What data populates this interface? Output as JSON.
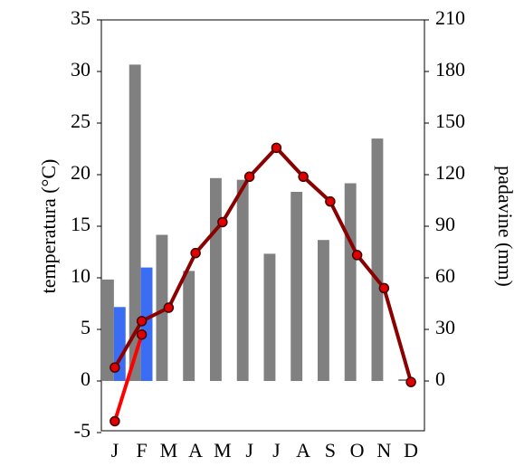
{
  "chart_data": {
    "type": "bar-line",
    "y_label": "temperatura (°C)",
    "y2_label": "padavine (mm)",
    "categories": [
      "J",
      "F",
      "M",
      "A",
      "M",
      "J",
      "J",
      "A",
      "S",
      "O",
      "N",
      "D"
    ],
    "ylim": [
      -5,
      35
    ],
    "yticks": [
      -5,
      0,
      5,
      10,
      15,
      20,
      25,
      30,
      35
    ],
    "y2lim": [
      -30,
      210
    ],
    "y2ticks": [
      0,
      30,
      60,
      90,
      120,
      150,
      180,
      210
    ],
    "series": [
      {
        "type": "bar",
        "axis": "y2",
        "color": "#808080",
        "values": [
          59,
          184,
          85,
          64,
          118,
          117,
          74,
          110,
          82,
          115,
          141,
          1
        ]
      },
      {
        "type": "bar",
        "axis": "y2",
        "color": "#3a6cf4",
        "values": [
          43,
          66,
          null,
          null,
          null,
          null,
          null,
          null,
          null,
          null,
          null,
          null
        ]
      },
      {
        "type": "line",
        "axis": "y",
        "color": "#8b0000",
        "values": [
          1.3,
          5.8,
          7.1,
          12.4,
          15.4,
          19.8,
          22.6,
          19.8,
          17.4,
          12.2,
          9.0,
          -0.1
        ]
      },
      {
        "type": "line",
        "axis": "y",
        "color": "#ff0000",
        "values": [
          -3.9,
          4.5,
          null,
          null,
          null,
          null,
          null,
          null,
          null,
          null,
          null,
          null
        ]
      }
    ]
  }
}
